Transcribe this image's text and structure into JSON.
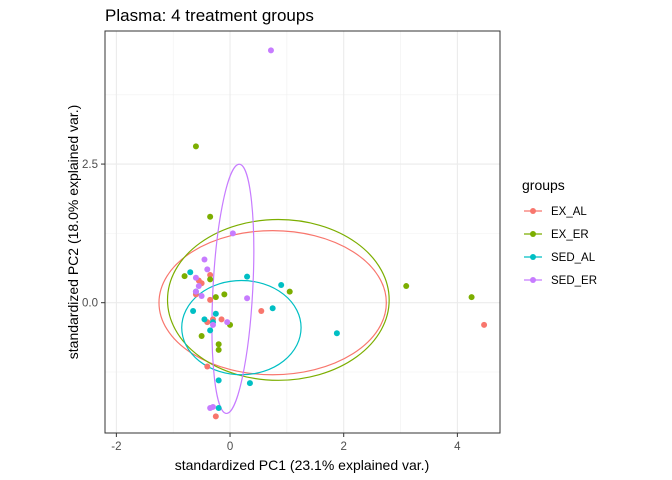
{
  "chart_data": {
    "type": "scatter",
    "title": "Plasma: 4 treatment groups",
    "xlabel": "standardized PC1 (23.1% explained var.)",
    "ylabel": "standardized PC2 (18.0% explained var.)",
    "xlim": [
      -2.2,
      4.75
    ],
    "ylim": [
      -2.35,
      4.9
    ],
    "x_ticks": [
      -2,
      0,
      2,
      4
    ],
    "x_tick_labels": [
      "-2",
      "0",
      "2",
      "4"
    ],
    "y_ticks": [
      0.0,
      2.5
    ],
    "y_tick_labels": [
      "0.0",
      "2.5"
    ],
    "grid": true,
    "legend": {
      "title": "groups",
      "position": "right"
    },
    "series": [
      {
        "name": "EX_AL",
        "color": "#F8766D",
        "points": [
          [
            4.47,
            -0.4
          ],
          [
            0.55,
            -0.15
          ],
          [
            -0.3,
            -0.3
          ],
          [
            -0.5,
            0.35
          ],
          [
            -0.35,
            0.5
          ],
          [
            -0.6,
            0.15
          ],
          [
            -0.4,
            -1.15
          ],
          [
            -0.25,
            -2.05
          ],
          [
            -0.55,
            0.4
          ],
          [
            -0.35,
            0.05
          ],
          [
            -0.15,
            -0.3
          ],
          [
            -0.4,
            -0.35
          ]
        ],
        "ellipse": {
          "cx": 0.75,
          "cy": 0.0,
          "rx": 2.0,
          "ry": 1.3,
          "angle": 0
        }
      },
      {
        "name": "EX_ER",
        "color": "#7CAE00",
        "points": [
          [
            -0.6,
            2.82
          ],
          [
            -0.35,
            1.55
          ],
          [
            4.25,
            0.1
          ],
          [
            3.1,
            0.3
          ],
          [
            1.05,
            0.2
          ],
          [
            -0.8,
            0.48
          ],
          [
            -0.1,
            0.15
          ],
          [
            0.0,
            -0.4
          ],
          [
            -0.2,
            -0.75
          ],
          [
            -0.2,
            -0.85
          ],
          [
            -0.25,
            0.1
          ],
          [
            -0.35,
            0.42
          ],
          [
            -0.5,
            -0.6
          ]
        ],
        "ellipse": {
          "cx": 0.85,
          "cy": 0.05,
          "rx": 1.95,
          "ry": 1.45,
          "angle": 0
        }
      },
      {
        "name": "SED_AL",
        "color": "#00BFC4",
        "points": [
          [
            1.88,
            -0.55
          ],
          [
            0.9,
            0.32
          ],
          [
            0.75,
            -0.1
          ],
          [
            0.3,
            0.47
          ],
          [
            -0.65,
            -0.15
          ],
          [
            -0.7,
            0.55
          ],
          [
            -0.2,
            -1.4
          ],
          [
            0.35,
            -1.45
          ],
          [
            -0.3,
            -0.35
          ],
          [
            -0.35,
            -0.5
          ],
          [
            -0.6,
            0.2
          ],
          [
            -0.25,
            -0.2
          ],
          [
            -0.45,
            -0.3
          ],
          [
            -0.2,
            -1.9
          ]
        ],
        "ellipse": {
          "cx": 0.2,
          "cy": -0.45,
          "rx": 1.05,
          "ry": 0.85,
          "angle": 0
        }
      },
      {
        "name": "SED_ER",
        "color": "#C77CFF",
        "points": [
          [
            0.72,
            4.55
          ],
          [
            0.05,
            1.25
          ],
          [
            0.3,
            0.08
          ],
          [
            -0.45,
            0.78
          ],
          [
            -0.4,
            0.6
          ],
          [
            -0.6,
            0.45
          ],
          [
            -0.3,
            -0.4
          ],
          [
            -0.05,
            -0.35
          ],
          [
            -0.55,
            0.3
          ],
          [
            -0.35,
            -1.9
          ],
          [
            -0.3,
            -1.88
          ],
          [
            -0.5,
            0.12
          ],
          [
            -0.6,
            0.2
          ]
        ],
        "ellipse": {
          "cx": 0.05,
          "cy": 0.25,
          "rx": 0.35,
          "ry": 2.25,
          "angle": 3
        }
      }
    ]
  }
}
